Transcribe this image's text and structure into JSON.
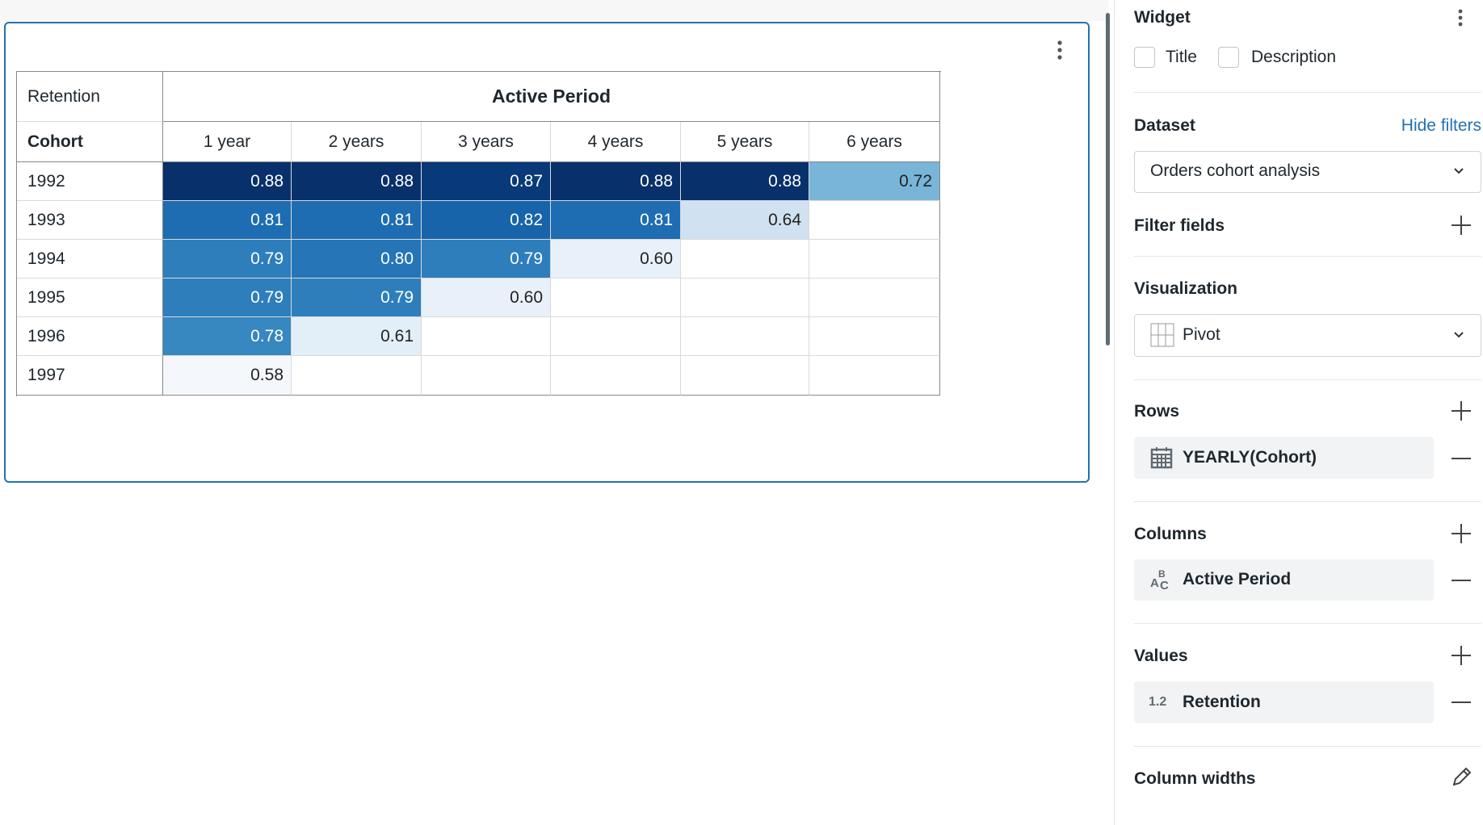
{
  "table": {
    "corner": "Retention",
    "column_group": "Active Period",
    "row_header": "Cohort",
    "columns": [
      "1 year",
      "2 years",
      "3 years",
      "4 years",
      "5 years",
      "6 years"
    ],
    "rows": [
      {
        "cohort": "1992",
        "values": [
          "0.88",
          "0.88",
          "0.87",
          "0.88",
          "0.88",
          "0.72"
        ]
      },
      {
        "cohort": "1993",
        "values": [
          "0.81",
          "0.81",
          "0.82",
          "0.81",
          "0.64",
          null
        ]
      },
      {
        "cohort": "1994",
        "values": [
          "0.79",
          "0.80",
          "0.79",
          "0.60",
          null,
          null
        ]
      },
      {
        "cohort": "1995",
        "values": [
          "0.79",
          "0.79",
          "0.60",
          null,
          null,
          null
        ]
      },
      {
        "cohort": "1996",
        "values": [
          "0.78",
          "0.61",
          null,
          null,
          null,
          null
        ]
      },
      {
        "cohort": "1997",
        "values": [
          "0.58",
          null,
          null,
          null,
          null,
          null
        ]
      }
    ]
  },
  "sidebar": {
    "widget": "Widget",
    "options": [
      "Title",
      "Description"
    ],
    "dataset_label": "Dataset",
    "hide_filters": "Hide filters",
    "dataset": "Orders cohort analysis",
    "filter_fields": "Filter fields",
    "visualization_label": "Visualization",
    "visualization": "Pivot",
    "rows_label": "Rows",
    "rows_field": "YEARLY(Cohort)",
    "columns_label": "Columns",
    "columns_icon": [
      "A",
      "B",
      "C"
    ],
    "columns_field": "Active Period",
    "values_label": "Values",
    "values_icon": "1.2",
    "values_field": "Retention",
    "column_widths": "Column widths"
  }
}
